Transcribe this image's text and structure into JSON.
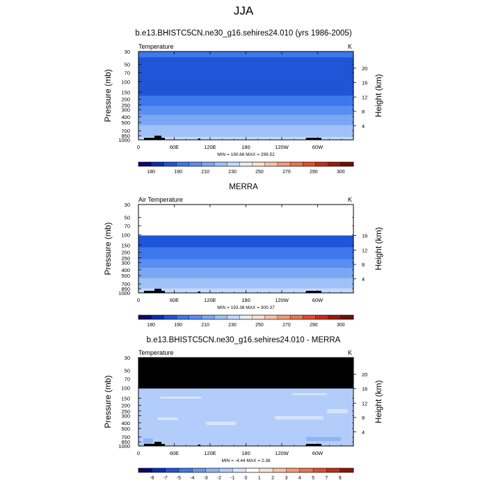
{
  "main_title": "JJA",
  "palettes": {
    "abs": [
      "#08086e",
      "#0a2db0",
      "#1f55d6",
      "#3d78ec",
      "#5a8ef2",
      "#7ba7f5",
      "#9fc1f8",
      "#c3d9fb",
      "#e6eefa",
      "#fbe0d2",
      "#f8c2a6",
      "#f29c77",
      "#ec7450",
      "#e24d2f",
      "#c82b18",
      "#9c1a0c",
      "#6e1005"
    ],
    "diff": [
      "#08086e",
      "#0a2db0",
      "#1f55d6",
      "#3d78ec",
      "#6a99f0",
      "#90b5f6",
      "#b3cdfa",
      "#d6e4fb",
      "#ffffff",
      "#fde2d3",
      "#f9c3a6",
      "#f29c77",
      "#ec7450",
      "#e24d2f",
      "#c82b18",
      "#8a1708"
    ],
    "missing": "#000000"
  },
  "chart_data": [
    {
      "type": "heatmap",
      "title": "b.e13.BHISTC5CN.ne30_g16.sehires24.010 (yrs 1986-2005)",
      "left_label": "Temperature",
      "unit_label": "K",
      "xlabel": "",
      "ylabel": "Pressure (mb)",
      "y2label": "Height (km)",
      "x_ticks": [
        "0",
        "60E",
        "120E",
        "180",
        "120W",
        "60W"
      ],
      "y_ticks": [
        30,
        50,
        70,
        100,
        150,
        200,
        250,
        300,
        400,
        500,
        700,
        850,
        1000
      ],
      "y2_ticks": [
        20,
        16,
        12,
        8,
        4
      ],
      "stats": "MIN = 190.66  MAX = 299.52",
      "colorbar_labels": [
        "180",
        "190",
        "210",
        "230",
        "250",
        "270",
        "290",
        "300"
      ],
      "palette": "abs",
      "missing_above_mb": null,
      "profile_p": [
        30,
        50,
        70,
        100,
        150,
        200,
        250,
        300,
        400,
        500,
        700,
        850,
        1000
      ],
      "profile_v": [
        213,
        207,
        203,
        198,
        205,
        217,
        228,
        240,
        253,
        264,
        281,
        289,
        295
      ],
      "topography": true
    },
    {
      "type": "heatmap",
      "title": "MERRA",
      "left_label": "Air Temperature",
      "unit_label": "K",
      "xlabel": "",
      "ylabel": "Pressure (mb)",
      "y2label": "Height (km)",
      "x_ticks": [
        "0",
        "60E",
        "120E",
        "180",
        "120W",
        "60W"
      ],
      "y_ticks": [
        30,
        50,
        70,
        100,
        150,
        200,
        250,
        300,
        400,
        500,
        700,
        850,
        1000
      ],
      "y2_ticks": [
        16,
        12,
        8,
        4
      ],
      "stats": "MIN = 193.38  MAX = 300.37",
      "colorbar_labels": [
        "180",
        "190",
        "210",
        "230",
        "250",
        "270",
        "290",
        "300"
      ],
      "palette": "abs",
      "blank_above_mb": 100,
      "profile_p": [
        100,
        150,
        200,
        250,
        300,
        400,
        500,
        700,
        850,
        1000
      ],
      "profile_v": [
        200,
        206,
        218,
        229,
        241,
        254,
        265,
        282,
        290,
        296
      ],
      "topography": true
    },
    {
      "type": "heatmap",
      "title": "b.e13.BHISTC5CN.ne30_g16.sehires24.010 - MERRA",
      "left_label": "Temperature",
      "unit_label": "K",
      "xlabel": "",
      "ylabel": "Pressure (mb)",
      "y2label": "Height (km)",
      "x_ticks": [
        "0",
        "60E",
        "120E",
        "180",
        "120W",
        "60W"
      ],
      "y_ticks": [
        30,
        50,
        70,
        100,
        150,
        200,
        250,
        300,
        400,
        500,
        700,
        850,
        1000
      ],
      "y2_ticks": [
        20,
        16,
        12,
        8,
        4
      ],
      "stats": "MIN =  -4.44  MAX =   2.38",
      "colorbar_labels": [
        "-9",
        "-7",
        "-5",
        "-4",
        "-3",
        "-2",
        "-1",
        "0",
        "1",
        "2",
        "3",
        "4",
        "5",
        "7",
        "9"
      ],
      "palette": "diff",
      "missing_above_mb": 100,
      "profile_p": [
        100,
        150,
        200,
        300,
        400,
        500,
        700,
        850,
        1000
      ],
      "profile_v": [
        -1.5,
        -1.5,
        -1.5,
        -1.5,
        -2.0,
        -1.5,
        -1.5,
        -1.5,
        -1.5
      ],
      "topography": true
    }
  ]
}
